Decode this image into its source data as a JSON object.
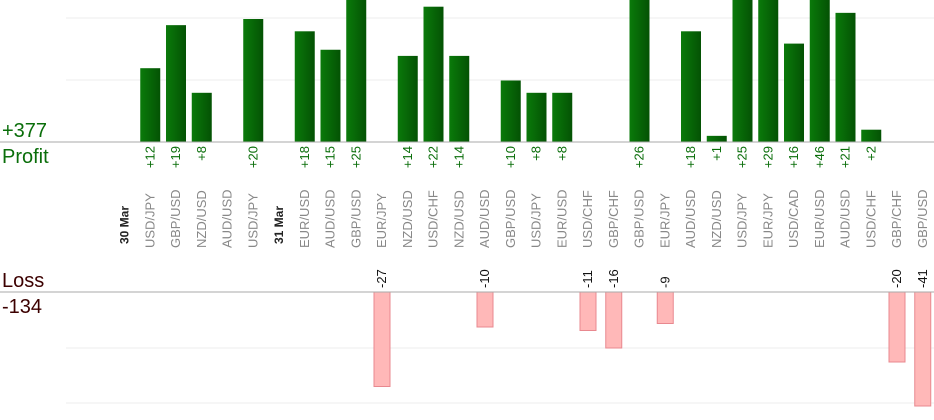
{
  "chart_data": {
    "type": "bar",
    "profit_total": "+377",
    "profit_label": "Profit",
    "loss_label": "Loss",
    "loss_total": "-134",
    "colors": {
      "profit": "#0e6e0e",
      "loss": "#ffb8b8",
      "loss_border": "#e8888f",
      "profit_text": "#0a6e0a",
      "loss_text": "#3c0000"
    },
    "trades": [
      {
        "date": "30 Mar"
      },
      {
        "pair": "USD/JPY",
        "value": 12
      },
      {
        "pair": "GBP/USD",
        "value": 19
      },
      {
        "pair": "NZD/USD",
        "value": 8
      },
      {
        "pair": "AUD/USD",
        "value": 0
      },
      {
        "pair": "USD/JPY",
        "value": 20
      },
      {
        "date": "31 Mar"
      },
      {
        "pair": "EUR/USD",
        "value": 18
      },
      {
        "pair": "AUD/USD",
        "value": 15
      },
      {
        "pair": "GBP/USD",
        "value": 25
      },
      {
        "pair": "EUR/JPY",
        "value": -27
      },
      {
        "pair": "NZD/USD",
        "value": 14
      },
      {
        "pair": "USD/CHF",
        "value": 22
      },
      {
        "pair": "NZD/USD",
        "value": 14
      },
      {
        "pair": "AUD/USD",
        "value": -10
      },
      {
        "pair": "GBP/USD",
        "value": 10
      },
      {
        "pair": "USD/JPY",
        "value": 8
      },
      {
        "pair": "EUR/USD",
        "value": 8
      },
      {
        "pair": "USD/CHF",
        "value": -11
      },
      {
        "pair": "GBP/CHF",
        "value": -16
      },
      {
        "pair": "GBP/USD",
        "value": 26
      },
      {
        "pair": "EUR/JPY",
        "value": -9
      },
      {
        "pair": "AUD/USD",
        "value": 18
      },
      {
        "pair": "NZD/USD",
        "value": 1
      },
      {
        "pair": "USD/JPY",
        "value": 25
      },
      {
        "pair": "EUR/JPY",
        "value": 29
      },
      {
        "pair": "USD/CAD",
        "value": 16
      },
      {
        "pair": "EUR/USD",
        "value": 46
      },
      {
        "pair": "AUD/USD",
        "value": 21
      },
      {
        "pair": "USD/CHF",
        "value": 2
      },
      {
        "pair": "GBP/CHF",
        "value": -20
      },
      {
        "pair": "GBP/USD",
        "value": -41
      }
    ]
  }
}
